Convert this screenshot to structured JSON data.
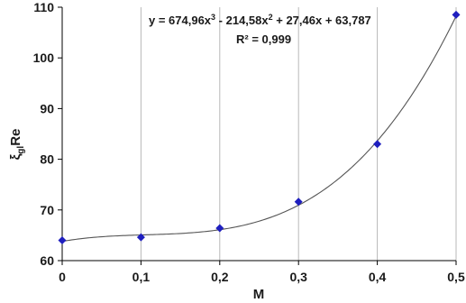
{
  "chart_data": {
    "type": "scatter",
    "xlabel": "M",
    "ylabel_parts": {
      "main": "ξ",
      "sub": "gl",
      "tail": "Re"
    },
    "xlim": [
      0,
      0.5
    ],
    "ylim": [
      60,
      110
    ],
    "x_ticks": [
      0,
      0.1,
      0.2,
      0.3,
      0.4,
      0.5
    ],
    "x_tick_labels": [
      "0",
      "0,1",
      "0,2",
      "0,3",
      "0,4",
      "0,5"
    ],
    "y_ticks": [
      60,
      70,
      80,
      90,
      100,
      110
    ],
    "y_tick_labels": [
      "60",
      "70",
      "80",
      "90",
      "100",
      "110"
    ],
    "grid": {
      "vertical": true,
      "horizontal": false
    },
    "series": [
      {
        "marker": "diamond",
        "color": "#1f1fbf",
        "points": [
          {
            "x": 0,
            "y": 64.0
          },
          {
            "x": 0.1,
            "y": 64.6
          },
          {
            "x": 0.2,
            "y": 66.4
          },
          {
            "x": 0.3,
            "y": 71.6
          },
          {
            "x": 0.4,
            "y": 83.0
          },
          {
            "x": 0.5,
            "y": 108.5
          }
        ]
      }
    ],
    "trendline": {
      "type": "polynomial",
      "coefficients": [
        674.96,
        -214.58,
        27.46,
        63.787
      ],
      "color": "#555555",
      "equation": {
        "lead": "y = 674,96x",
        "sup1": "3",
        "mid": " - 214,58x",
        "sup2": "2",
        "tail": " + 27,46x + 63,787"
      },
      "r_squared": "R² = 0,999"
    }
  }
}
